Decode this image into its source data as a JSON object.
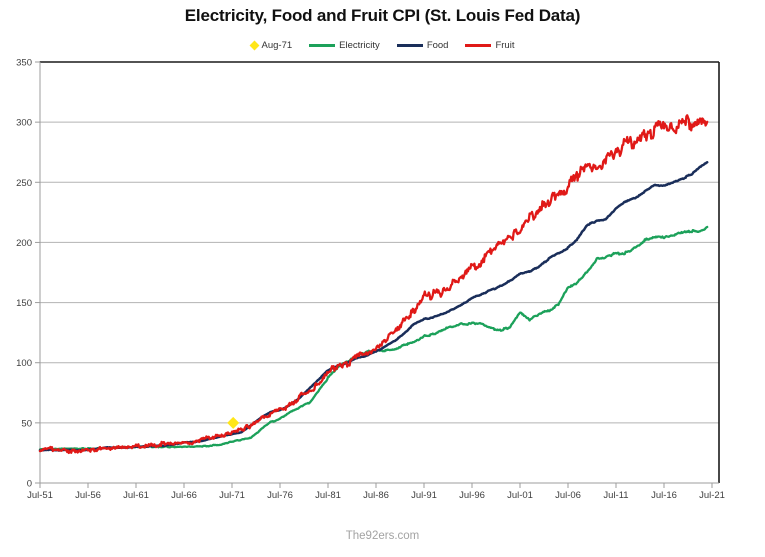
{
  "watermark": "The92ers.com",
  "chart_data": {
    "type": "line",
    "title": "Electricity, Food and Fruit CPI (St. Louis Fed Data)",
    "xlabel": "",
    "ylabel": "",
    "ylim": [
      0,
      350
    ],
    "y_ticks": [
      0,
      50,
      100,
      150,
      200,
      250,
      300,
      350
    ],
    "x_tick_labels": [
      "Jul-51",
      "Jul-56",
      "Jul-61",
      "Jul-66",
      "Jul-71",
      "Jul-76",
      "Jul-81",
      "Jul-86",
      "Jul-91",
      "Jul-96",
      "Jul-01",
      "Jul-06",
      "Jul-11",
      "Jul-16",
      "Jul-21"
    ],
    "x_range_years": [
      1951.5,
      2021.5
    ],
    "grid": "horizontal",
    "legend_position": "top",
    "legend": [
      {
        "label": "Aug-71",
        "type": "diamond",
        "color": "#FFE619"
      },
      {
        "label": "Electricity",
        "type": "line",
        "color": "#1CA15A"
      },
      {
        "label": "Food",
        "type": "line",
        "color": "#1A2E5A"
      },
      {
        "label": "Fruit",
        "type": "line",
        "color": "#E01917"
      }
    ],
    "marker": {
      "label": "Aug-71",
      "year": 1971.625,
      "value": 50,
      "color": "#FFE619",
      "shape": "diamond"
    },
    "years": [
      1951,
      1952,
      1953,
      1954,
      1955,
      1956,
      1957,
      1958,
      1959,
      1960,
      1961,
      1962,
      1963,
      1964,
      1965,
      1966,
      1967,
      1968,
      1969,
      1970,
      1971,
      1972,
      1973,
      1974,
      1975,
      1976,
      1977,
      1978,
      1979,
      1980,
      1981,
      1982,
      1983,
      1984,
      1985,
      1986,
      1987,
      1988,
      1989,
      1990,
      1991,
      1992,
      1993,
      1994,
      1995,
      1996,
      1997,
      1998,
      1999,
      2000,
      2001,
      2002,
      2003,
      2004,
      2005,
      2006,
      2007,
      2008,
      2009,
      2010,
      2011,
      2012,
      2013,
      2014,
      2015,
      2016,
      2017,
      2018,
      2019,
      2020,
      2021
    ],
    "series": [
      {
        "name": "Electricity",
        "color": "#1CA15A",
        "jitter": 1.5,
        "values": [
          27.8,
          28.0,
          28.2,
          28.4,
          28.5,
          28.6,
          28.8,
          29.2,
          29.5,
          29.9,
          30.1,
          30.2,
          30.2,
          30.1,
          30.0,
          30.0,
          30.3,
          30.7,
          31.2,
          32.3,
          34.3,
          36.0,
          37.5,
          44.5,
          50.5,
          53.5,
          58.5,
          62.5,
          66.5,
          76.0,
          87.5,
          96.0,
          101.0,
          105.5,
          109.0,
          110.5,
          110.0,
          111.5,
          115.0,
          117.5,
          122.0,
          124.0,
          127.5,
          130.0,
          132.0,
          132.5,
          133.0,
          128.5,
          127.0,
          130.0,
          142.0,
          136.0,
          140.5,
          143.5,
          148.5,
          163.0,
          167.0,
          175.5,
          186.0,
          188.0,
          191.0,
          191.5,
          195.5,
          201.5,
          204.5,
          203.5,
          206.5,
          208.5,
          209.0,
          210.0,
          213.5
        ]
      },
      {
        "name": "Food",
        "color": "#1A2E5A",
        "jitter": 0.8,
        "values": [
          27.2,
          27.6,
          27.2,
          27.5,
          27.2,
          27.7,
          28.5,
          29.6,
          29.2,
          29.6,
          30.0,
          30.3,
          30.7,
          31.1,
          32.0,
          33.8,
          34.0,
          35.3,
          37.1,
          39.2,
          40.4,
          42.3,
          48.2,
          54.0,
          59.0,
          60.5,
          64.5,
          70.5,
          78.0,
          86.0,
          93.5,
          97.5,
          99.8,
          103.8,
          105.9,
          109.3,
          113.5,
          118.3,
          125.0,
          132.5,
          136.2,
          137.8,
          140.8,
          144.5,
          148.5,
          153.5,
          157.0,
          160.5,
          164.0,
          168.0,
          173.5,
          176.0,
          180.0,
          186.5,
          191.0,
          195.5,
          203.0,
          214.5,
          218.0,
          219.5,
          228.0,
          234.0,
          237.0,
          242.5,
          247.5,
          247.5,
          250.0,
          253.0,
          257.5,
          264.0,
          269.0
        ]
      },
      {
        "name": "Fruit",
        "color": "#E01917",
        "jitter": 6,
        "values": [
          27.5,
          28.5,
          27.2,
          26.8,
          26.8,
          27.8,
          28.3,
          29.8,
          29.3,
          29.8,
          30.3,
          30.8,
          31.3,
          32.8,
          32.3,
          33.8,
          34.3,
          36.8,
          37.8,
          39.8,
          41.5,
          43.8,
          48.5,
          53.5,
          58.0,
          60.5,
          65.0,
          71.5,
          77.0,
          82.5,
          92.5,
          97.5,
          99.5,
          104.5,
          106.5,
          110.0,
          119.0,
          125.0,
          135.5,
          143.0,
          155.0,
          157.0,
          160.0,
          165.5,
          170.0,
          179.0,
          185.5,
          193.0,
          200.5,
          205.0,
          211.0,
          220.5,
          228.0,
          235.5,
          241.0,
          246.0,
          255.0,
          266.0,
          259.0,
          268.0,
          276.0,
          281.0,
          286.0,
          291.0,
          294.0,
          299.0,
          296.0,
          301.0,
          298.0,
          301.0,
          303.5
        ]
      }
    ]
  }
}
